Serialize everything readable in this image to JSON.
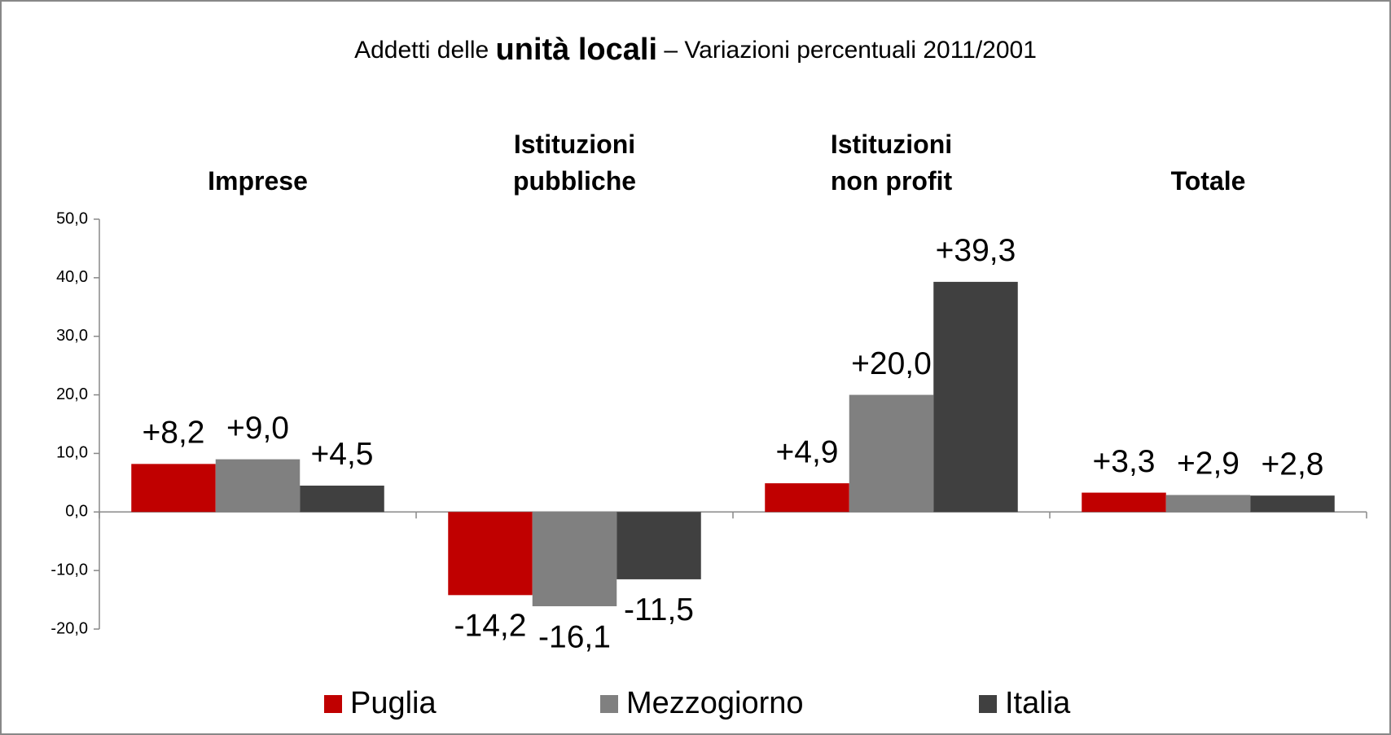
{
  "chart_data": {
    "type": "bar",
    "title": [
      "Addetti delle",
      "unità locali",
      "– Variazioni percentuali 2011/2001"
    ],
    "categories": [
      [
        "Imprese"
      ],
      [
        "Istituzioni",
        "pubbliche"
      ],
      [
        "Istituzioni",
        "non profit"
      ],
      [
        "Totale"
      ]
    ],
    "series": [
      {
        "name": "Puglia",
        "color": "#c00000",
        "values": [
          8.2,
          -14.2,
          4.9,
          3.3
        ],
        "value_labels": [
          "+8,2",
          "-14,2",
          "+4,9",
          "+3,3"
        ]
      },
      {
        "name": "Mezzogiorno",
        "color": "#808080",
        "values": [
          9.0,
          -16.1,
          20.0,
          2.9
        ],
        "value_labels": [
          "+9,0",
          "-16,1",
          "+20,0",
          "+2,9"
        ]
      },
      {
        "name": "Italia",
        "color": "#404040",
        "values": [
          4.5,
          -11.5,
          39.3,
          2.8
        ],
        "value_labels": [
          "+4,5",
          "-11,5",
          "+39,3",
          "+2,8"
        ]
      }
    ],
    "ylim": [
      -20,
      50
    ],
    "yticks": [
      {
        "value": -20,
        "label": "-20,0"
      },
      {
        "value": -10,
        "label": "-10,0"
      },
      {
        "value": 0,
        "label": "0,0"
      },
      {
        "value": 10,
        "label": "10,0"
      },
      {
        "value": 20,
        "label": "20,0"
      },
      {
        "value": 30,
        "label": "30,0"
      },
      {
        "value": 40,
        "label": "40,0"
      },
      {
        "value": 50,
        "label": "50,0"
      }
    ],
    "grid": false
  }
}
